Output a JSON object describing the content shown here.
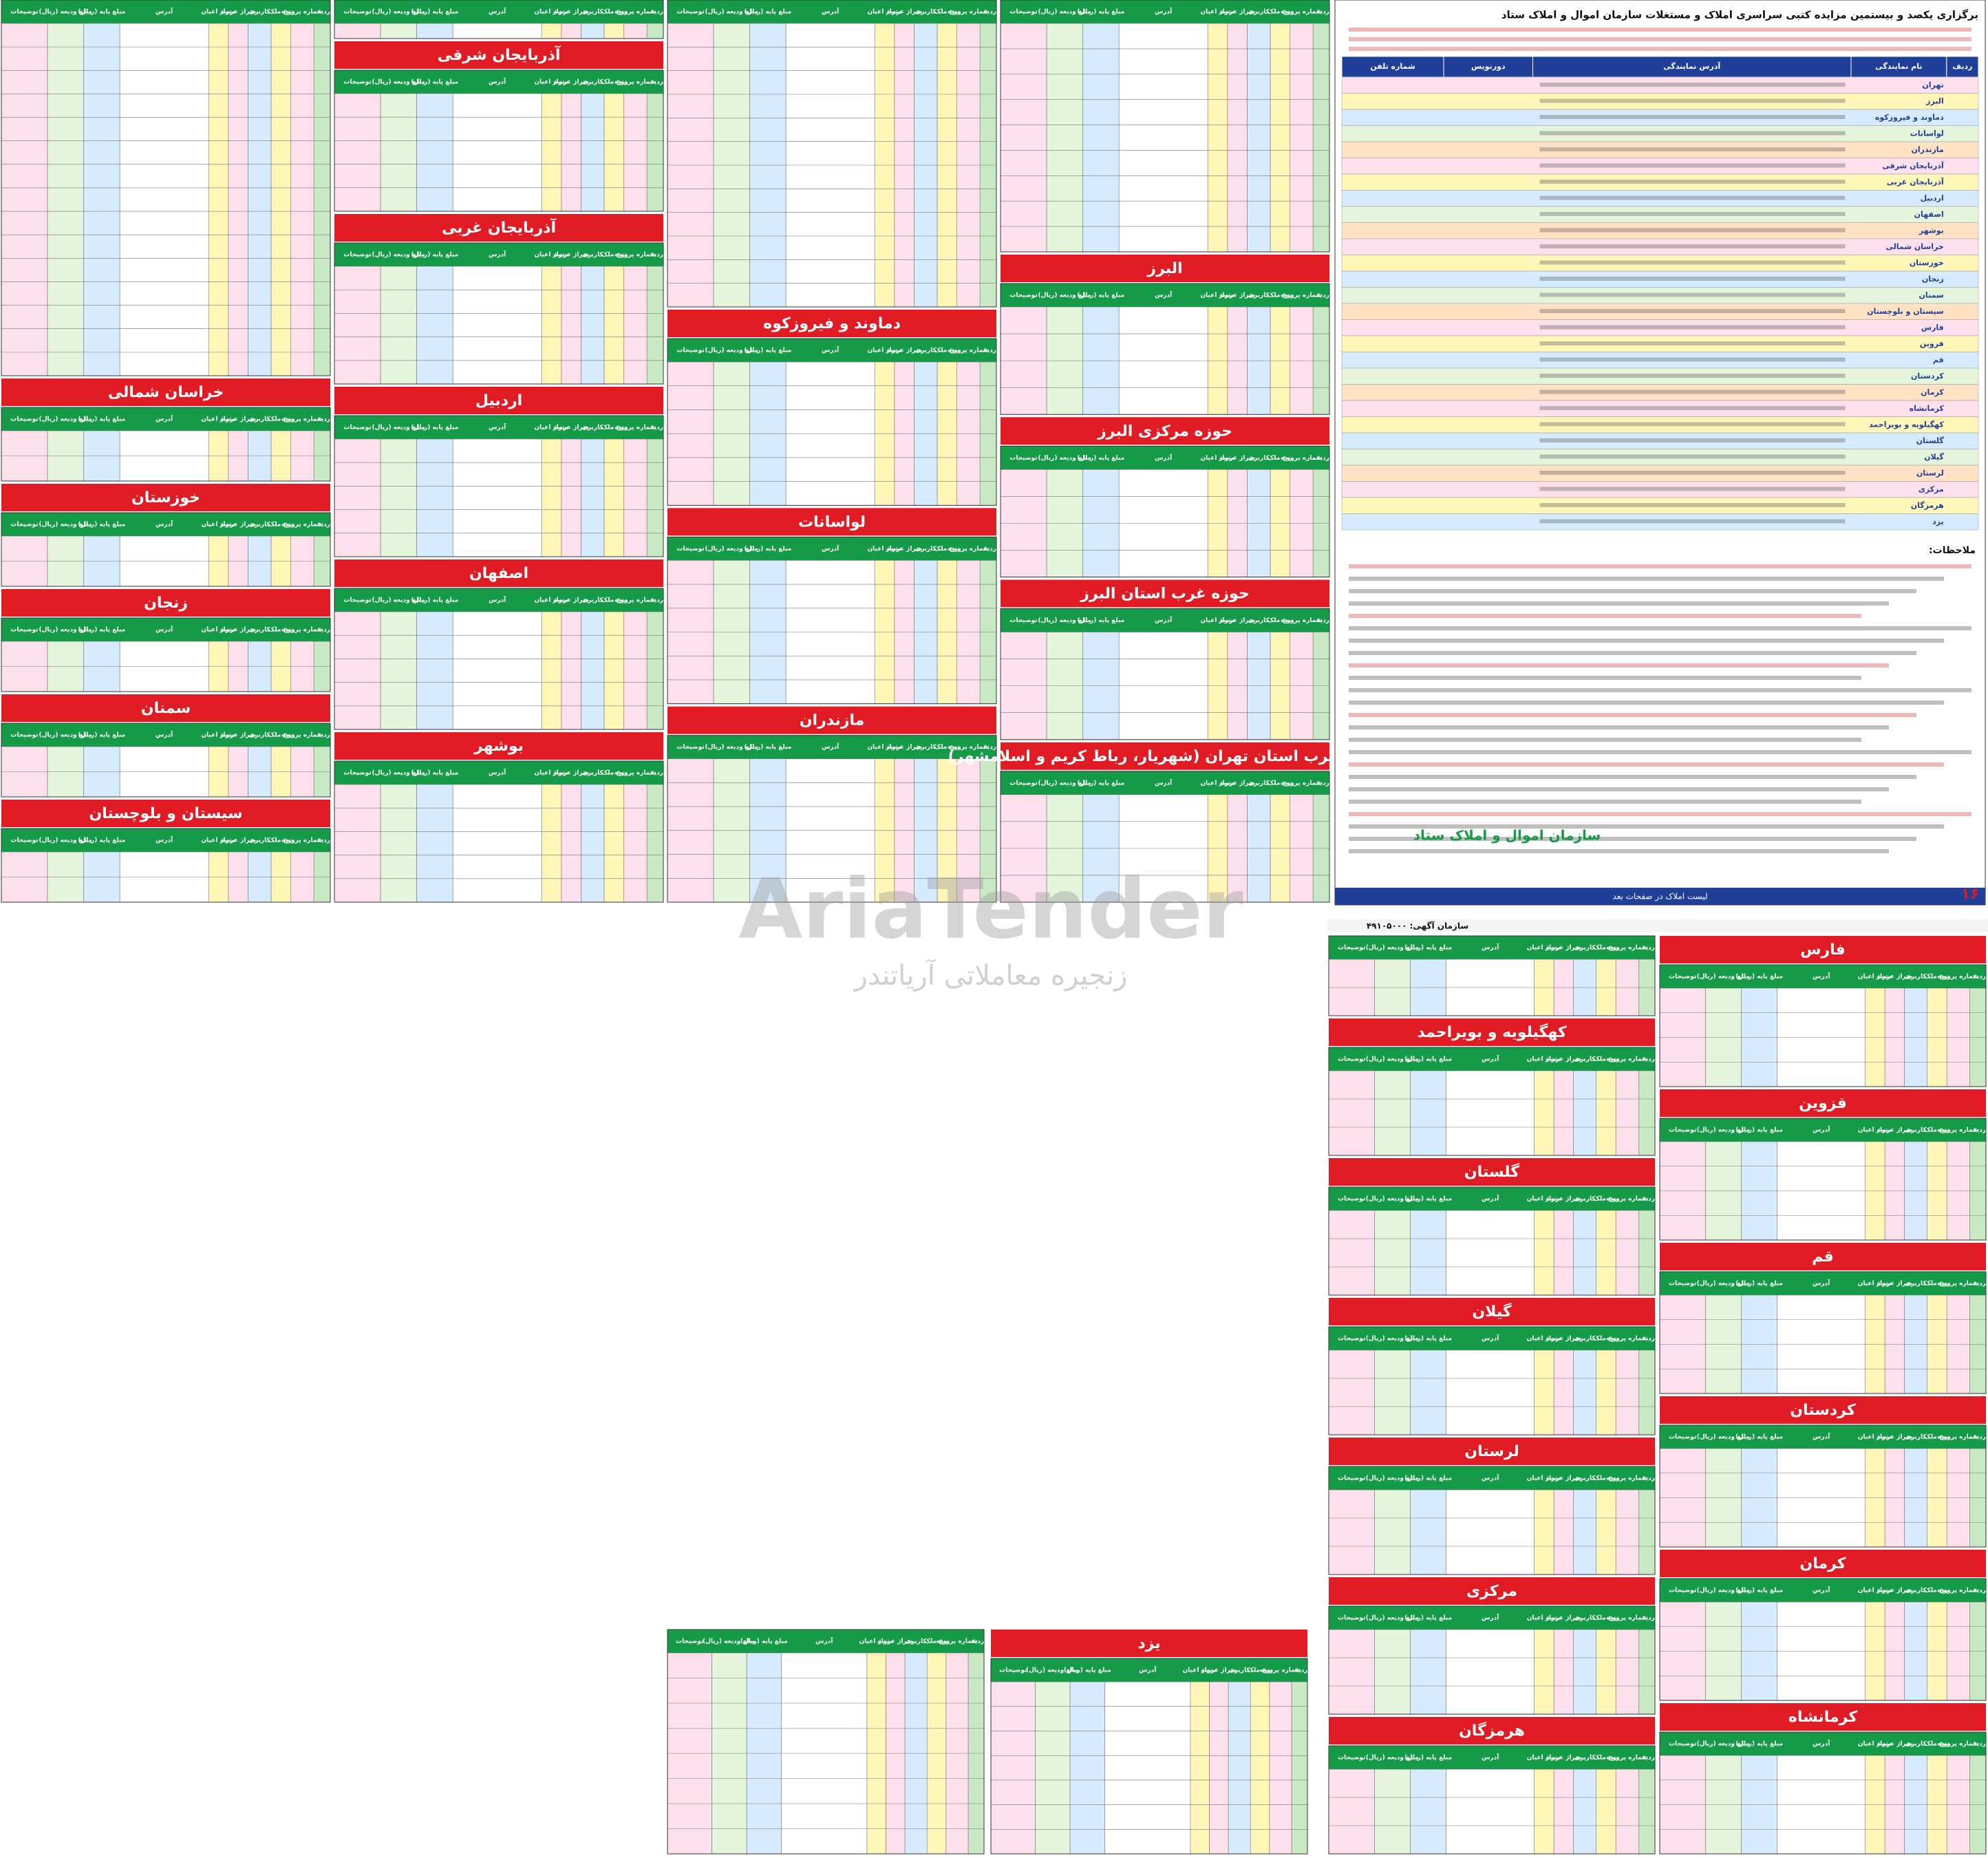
{
  "header_labels": [
    "ردیف",
    "شماره پرونده",
    "نوع ملک",
    "کاربری",
    "متراژ عرصه",
    "متراژ اعیان",
    "آدرس",
    "مبلغ پایه (ریال)",
    "مبلغ ودیعه (ریال)",
    "توضیحات"
  ],
  "top_columns": [
    [
      "خراسان شمالی",
      "خوزستان",
      "زنجان",
      "سمنان",
      "سیستان و بلوچستان"
    ],
    [
      "آذربایجان شرقی",
      "آذربایجان غربی",
      "اردبیل",
      "اصفهان",
      "بوشهر"
    ],
    [
      "دماوند و فیروزکوه",
      "لواسانات",
      "مازندران"
    ],
    [
      "البرز",
      "حوزه مرکزی البرز",
      "حوزه غرب استان البرز",
      "حوزه غرب استان تهران (شهریار، رباط کریم و اسلامشهر)"
    ]
  ],
  "bottom_columns": [
    [
      "فارس",
      "قزوین",
      "قم",
      "کردستان",
      "کرمان",
      "کرمانشاه"
    ],
    [
      "کهگیلویه و بویراحمد",
      "گلستان",
      "گیلان",
      "لرستان",
      "مرکزی",
      "هرمزگان"
    ],
    [
      "یزد"
    ]
  ],
  "intro": {
    "title": "برگزاری یکصد و بیستمین مزایده کتبی سراسری املاک و مستغلات سازمان اموال و املاک ستاد",
    "table_headers": [
      "ردیف",
      "نام نمایندگی",
      "آدرس نمایندگی",
      "دورنویس",
      "شماره تلفن"
    ],
    "offices": [
      "تهران",
      "البرز",
      "دماوند و فیروزکوه",
      "لواسانات",
      "مازندران",
      "آذربایجان شرقی",
      "آذربایجان غربی",
      "اردبیل",
      "اصفهان",
      "بوشهر",
      "خراسان شمالی",
      "خوزستان",
      "زنجان",
      "سمنان",
      "سیستان و بلوچستان",
      "فارس",
      "قزوین",
      "قم",
      "کردستان",
      "کرمان",
      "کرمانشاه",
      "کهگیلویه و بویراحمد",
      "گلستان",
      "گیلان",
      "لرستان",
      "مرکزی",
      "هرمزگان",
      "یزد"
    ],
    "notes_title": "ملاحظات:",
    "org_name": "سازمان اموال و املاک ستاد",
    "footer": "لیست املاک در صفحات بعد",
    "page_number": "۱۶"
  },
  "ad_code": "سازمان آگهی: ۴۹۱۰۵۰۰۰",
  "watermark": {
    "brand": "AriaTender",
    "tagline": "زنجیره معاملاتی آریاتندر"
  }
}
